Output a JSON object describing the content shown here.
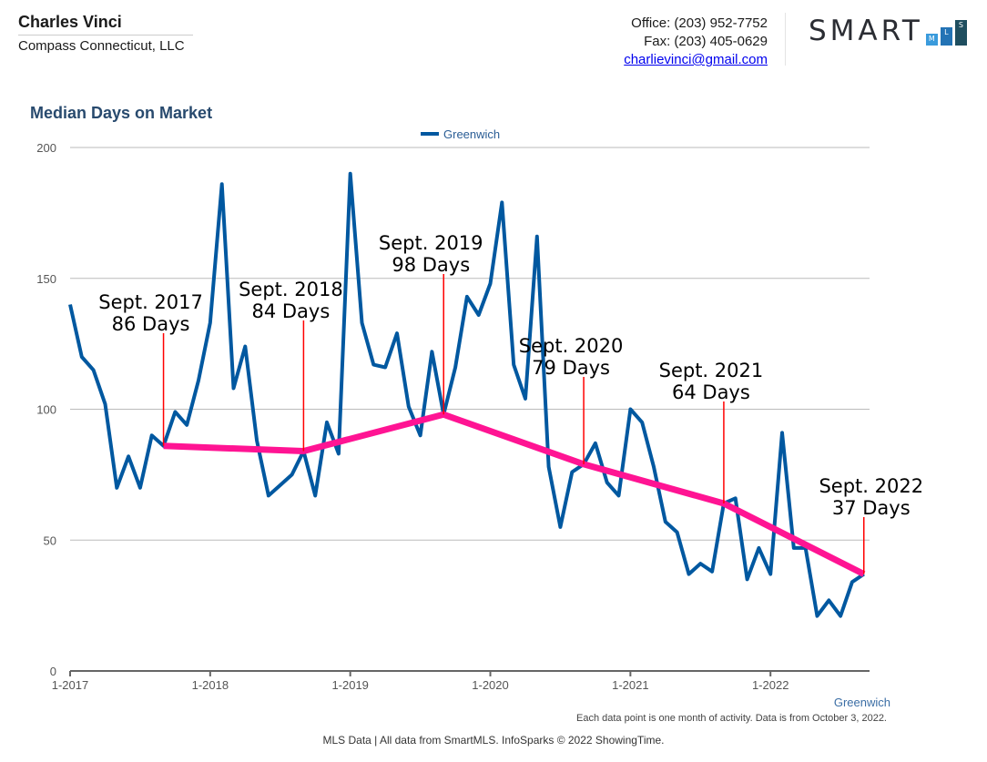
{
  "header": {
    "agent_name": "Charles Vinci",
    "company": "Compass Connecticut, LLC",
    "office": "Office: (203) 952-7752",
    "fax": "Fax: (203) 405-0629",
    "email": "charlievinci@gmail.com",
    "logo": {
      "word": "SMART",
      "boxes": [
        "M",
        "L",
        "S"
      ],
      "box_colors": [
        "#3a9bdc",
        "#2373b5",
        "#1f4e5f"
      ]
    }
  },
  "footer": {
    "note": "Each data point is one month of activity. Data is from October 3, 2022.",
    "credit": "MLS Data | All data from SmartMLS. InfoSparks © 2022 ShowingTime."
  },
  "chart_data": {
    "type": "line",
    "title": "Median Days on Market",
    "legend": {
      "entries": [
        "Greenwich"
      ],
      "placement": "top-center"
    },
    "x_axis_caption": "Greenwich",
    "xlim": [
      "1-2017",
      "9-2022"
    ],
    "x_ticks": [
      "1-2017",
      "1-2018",
      "1-2019",
      "1-2020",
      "1-2021",
      "1-2022"
    ],
    "ylim": [
      0,
      200
    ],
    "y_ticks": [
      0,
      50,
      100,
      150,
      200
    ],
    "grid": true,
    "colors": {
      "series": "#0058a0",
      "trend": "#ff1493",
      "annotation_line": "#ff0000",
      "grid": "#bbbbbb"
    },
    "series": [
      {
        "name": "Greenwich",
        "start": "1-2017",
        "interval": "month",
        "values": [
          140,
          120,
          115,
          102,
          70,
          82,
          70,
          90,
          86,
          99,
          94,
          111,
          133,
          186,
          108,
          124,
          88,
          67,
          71,
          75,
          84,
          67,
          95,
          83,
          190,
          133,
          117,
          116,
          129,
          101,
          90,
          122,
          98,
          116,
          143,
          136,
          148,
          179,
          117,
          104,
          166,
          78,
          55,
          76,
          79,
          87,
          72,
          67,
          100,
          95,
          78,
          57,
          53,
          37,
          41,
          38,
          64,
          66,
          35,
          47,
          37,
          91,
          47,
          47,
          21,
          27,
          21,
          34,
          37
        ]
      }
    ],
    "annotations": [
      {
        "date": "9-2017",
        "line1": "Sept. 2017",
        "line2": "86 Days",
        "value": 86
      },
      {
        "date": "9-2018",
        "line1": "Sept. 2018",
        "line2": "84 Days",
        "value": 84
      },
      {
        "date": "9-2019",
        "line1": "Sept. 2019",
        "line2": "98 Days",
        "value": 98
      },
      {
        "date": "9-2020",
        "line1": "Sept. 2020",
        "line2": "79 Days",
        "value": 79
      },
      {
        "date": "9-2021",
        "line1": "Sept. 2021",
        "line2": "64 Days",
        "value": 64
      },
      {
        "date": "9-2022",
        "line1": "Sept. 2022",
        "line2": "37 Days",
        "value": 37
      }
    ]
  }
}
